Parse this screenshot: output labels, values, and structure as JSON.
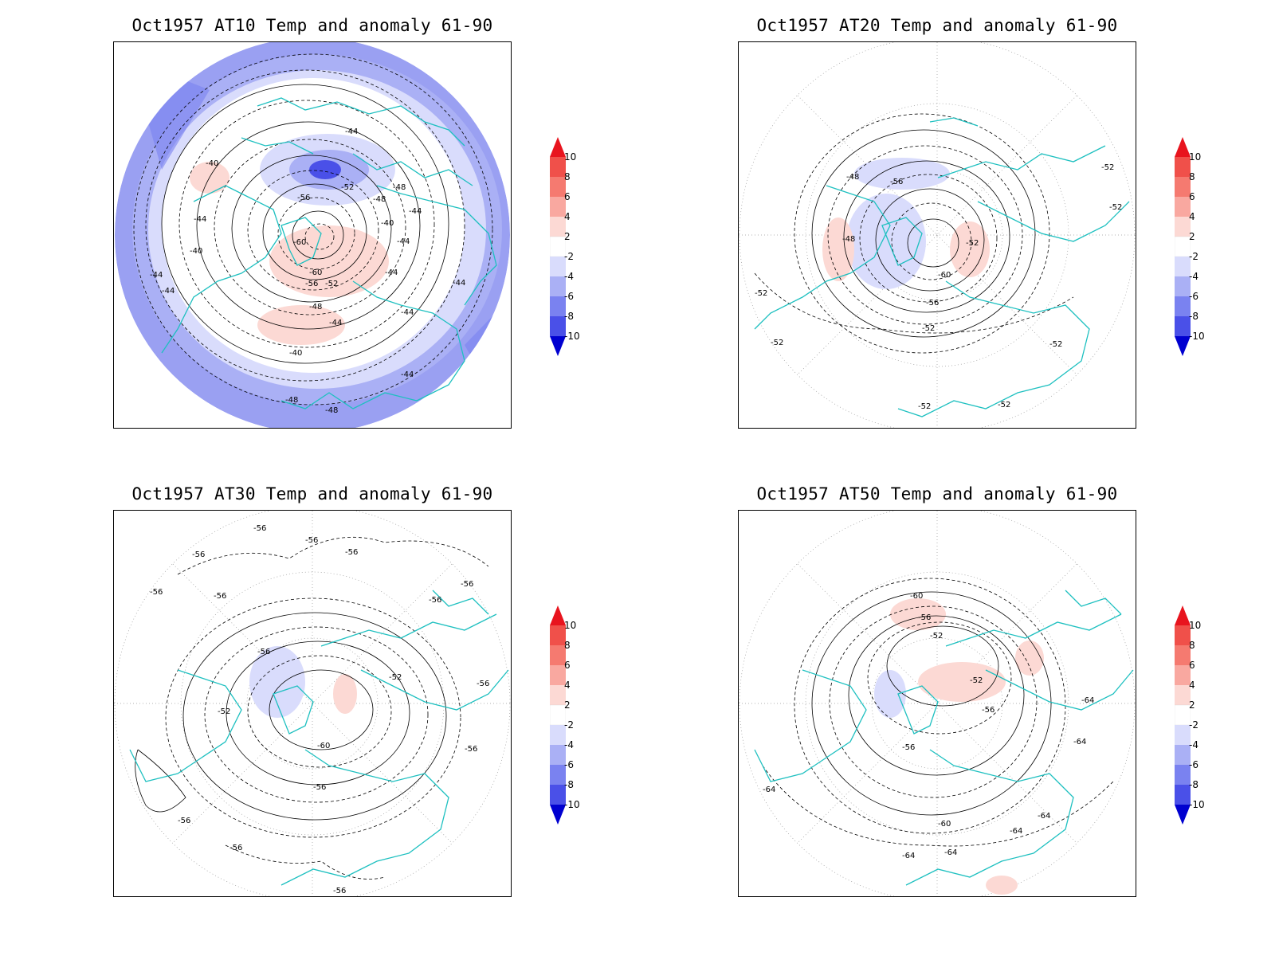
{
  "panels": [
    {
      "id": "at10",
      "title": "Oct1957 AT10 Temp and anomaly 61-90",
      "contour_labels": [
        "-44",
        "-40",
        "-40",
        "-44",
        "-44",
        "-44",
        "-56",
        "-52",
        "-48",
        "-48",
        "-44",
        "-40",
        "-44",
        "-60",
        "-60",
        "-56",
        "-52",
        "-44",
        "-48",
        "-44",
        "-44",
        "-40",
        "-44",
        "-44",
        "-48",
        "-48"
      ]
    },
    {
      "id": "at20",
      "title": "Oct1957 AT20 Temp and anomaly 61-90",
      "contour_labels": [
        "-48",
        "-56",
        "-48",
        "-52",
        "-52",
        "-52",
        "-60",
        "-56",
        "-52",
        "-52",
        "-52",
        "-52",
        "-52",
        "-52"
      ]
    },
    {
      "id": "at30",
      "title": "Oct1957 AT30 Temp and anomaly 61-90",
      "contour_labels": [
        "-56",
        "-56",
        "-56",
        "-56",
        "-56",
        "-56",
        "-56",
        "-56",
        "-52",
        "-52",
        "-56",
        "-60",
        "-56",
        "-56",
        "-56",
        "-56",
        "-56",
        "-56"
      ]
    },
    {
      "id": "at50",
      "title": "Oct1957 AT50 Temp and anomaly 61-90",
      "contour_labels": [
        "-60",
        "-56",
        "-52",
        "-52",
        "-56",
        "-56",
        "-64",
        "-64",
        "-64",
        "-60",
        "-64",
        "-64",
        "-64",
        "-64"
      ]
    }
  ],
  "colorbar": {
    "labels": [
      "10",
      "8",
      "6",
      "4",
      "2",
      "-2",
      "-4",
      "-6",
      "-8",
      "-10"
    ],
    "colors": [
      "#e8141e",
      "#f0504a",
      "#f57a70",
      "#f9a8a0",
      "#fcd9d4",
      "#ffffff",
      "#d9dcfc",
      "#aab0f5",
      "#7a82f0",
      "#4a50e8",
      "#1e22e0",
      "#0000d0"
    ]
  },
  "colors": {
    "coast": "#1ec0c0",
    "contour": "#000000",
    "grid": "#999999"
  }
}
